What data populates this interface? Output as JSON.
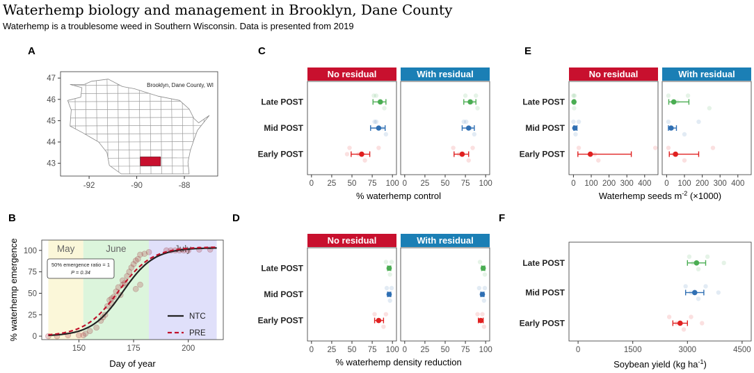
{
  "header": {
    "title": "Waterhemp biology and management in Brooklyn, Dane County",
    "subtitle": "Waterhemp is a troublesome weed in Southern Wisconsin. Data is presented from 2019"
  },
  "colors": {
    "no_residual": "#c8102e",
    "with_residual": "#1b7fb5",
    "late": "#4aad52",
    "mid": "#2f6fb3",
    "early": "#e02020",
    "may_band": "#fbf7d9",
    "june_band": "#dcf5dc",
    "july_band": "#e0e0fa",
    "ntc_line": "#222222",
    "pre_line": "#c0102a"
  },
  "chart_data": [
    {
      "panel": "A",
      "type": "map",
      "title": "Brooklyn, Dane County, WI",
      "x_ticks": [
        -92,
        -90,
        -88
      ],
      "y_ticks": [
        43,
        44,
        45,
        46,
        47
      ],
      "xlim": [
        -93.2,
        -86.6
      ],
      "ylim": [
        42.4,
        47.3
      ],
      "highlight_county": "Dane County"
    },
    {
      "panel": "B",
      "type": "line",
      "xlabel": "Day of year",
      "ylabel": "% waterhemp emergence",
      "xlim": [
        133,
        216
      ],
      "ylim": [
        -4,
        112
      ],
      "x_ticks": [
        150,
        175,
        200
      ],
      "y_ticks": [
        0,
        25,
        50,
        75,
        100
      ],
      "month_bands": [
        {
          "label": "May",
          "start": 136,
          "end": 152
        },
        {
          "label": "June",
          "start": 152,
          "end": 182
        },
        {
          "label": "July",
          "start": 182,
          "end": 213
        }
      ],
      "annotation_line1": "50% emergence ratio = 1",
      "annotation_line2": "P = 0.34",
      "legend": [
        {
          "label": "NTC",
          "style": "solid"
        },
        {
          "label": "PRE",
          "style": "dashed"
        }
      ],
      "series": [
        {
          "name": "NTC",
          "midpoint": 170,
          "slope": 0.14,
          "max": 103
        },
        {
          "name": "PRE",
          "midpoint": 168,
          "slope": 0.13,
          "max": 104
        }
      ],
      "points": [
        [
          136,
          0
        ],
        [
          140,
          0
        ],
        [
          145,
          1
        ],
        [
          150,
          1
        ],
        [
          152,
          1
        ],
        [
          153,
          3
        ],
        [
          155,
          6
        ],
        [
          158,
          10
        ],
        [
          160,
          18
        ],
        [
          161,
          22
        ],
        [
          162,
          25
        ],
        [
          163,
          35
        ],
        [
          164,
          42
        ],
        [
          165,
          44
        ],
        [
          165,
          38
        ],
        [
          166,
          46
        ],
        [
          167,
          52
        ],
        [
          168,
          57
        ],
        [
          169,
          48
        ],
        [
          170,
          60
        ],
        [
          170,
          65
        ],
        [
          171,
          62
        ],
        [
          172,
          70
        ],
        [
          173,
          75
        ],
        [
          174,
          80
        ],
        [
          175,
          84
        ],
        [
          176,
          88
        ],
        [
          176,
          55
        ],
        [
          177,
          90
        ],
        [
          178,
          95
        ],
        [
          178,
          60
        ],
        [
          180,
          96
        ],
        [
          182,
          98
        ],
        [
          190,
          100
        ],
        [
          192,
          100
        ],
        [
          194,
          100
        ],
        [
          196,
          100
        ],
        [
          198,
          100
        ],
        [
          200,
          100
        ],
        [
          205,
          101
        ],
        [
          210,
          101
        ]
      ]
    },
    {
      "panel": "C",
      "type": "dot-interval",
      "xlabel": "% waterhemp control",
      "categories": [
        "Late POST",
        "Mid POST",
        "Early POST"
      ],
      "facets": [
        "No residual",
        "With residual"
      ],
      "x_ticks": [
        0,
        25,
        50,
        75,
        100
      ],
      "xlim": [
        -5,
        105
      ],
      "series": [
        {
          "facet": "No residual",
          "timing": "Late POST",
          "mean": 85,
          "low": 76,
          "high": 92,
          "raw": [
            80,
            86,
            90,
            77
          ]
        },
        {
          "facet": "No residual",
          "timing": "Mid POST",
          "mean": 83,
          "low": 73,
          "high": 91,
          "raw": [
            78,
            88,
            92,
            80
          ]
        },
        {
          "facet": "No residual",
          "timing": "Early POST",
          "mean": 62,
          "low": 49,
          "high": 72,
          "raw": [
            47,
            58,
            66,
            83,
            44
          ]
        },
        {
          "facet": "With residual",
          "timing": "Late POST",
          "mean": 81,
          "low": 73,
          "high": 88,
          "raw": [
            75,
            84,
            90,
            88
          ]
        },
        {
          "facet": "With residual",
          "timing": "Mid POST",
          "mean": 79,
          "low": 71,
          "high": 86,
          "raw": [
            73,
            82,
            86,
            76
          ]
        },
        {
          "facet": "With residual",
          "timing": "Early POST",
          "mean": 71,
          "low": 61,
          "high": 79,
          "raw": [
            60,
            67,
            79,
            84
          ]
        }
      ]
    },
    {
      "panel": "D",
      "type": "dot-interval",
      "xlabel": "% waterhemp density reduction",
      "categories": [
        "Late POST",
        "Mid POST",
        "Early POST"
      ],
      "facets": [
        "No residual",
        "With residual"
      ],
      "x_ticks": [
        0,
        25,
        50,
        75,
        100
      ],
      "xlim": [
        -5,
        105
      ],
      "series": [
        {
          "facet": "No residual",
          "timing": "Late POST",
          "mean": 96,
          "low": 94,
          "high": 98,
          "raw": [
            92,
            95,
            97,
            99
          ]
        },
        {
          "facet": "No residual",
          "timing": "Mid POST",
          "mean": 96,
          "low": 94,
          "high": 98,
          "raw": [
            93,
            95,
            97,
            99
          ]
        },
        {
          "facet": "No residual",
          "timing": "Early POST",
          "mean": 83,
          "low": 78,
          "high": 89,
          "raw": [
            78,
            84,
            89,
            92
          ]
        },
        {
          "facet": "With residual",
          "timing": "Late POST",
          "mean": 97,
          "low": 95,
          "high": 99,
          "raw": [
            93,
            96,
            99
          ]
        },
        {
          "facet": "With residual",
          "timing": "Mid POST",
          "mean": 96,
          "low": 94,
          "high": 98,
          "raw": [
            92,
            95,
            98,
            99
          ]
        },
        {
          "facet": "With residual",
          "timing": "Early POST",
          "mean": 94,
          "low": 91,
          "high": 97,
          "raw": [
            90,
            95,
            98,
            96
          ]
        }
      ]
    },
    {
      "panel": "E",
      "type": "dot-interval",
      "xlabel": "Waterhemp seeds m",
      "xlabel_sup": "-2",
      "xlabel_tail": " (×1000)",
      "categories": [
        "Late POST",
        "Mid POST",
        "Early POST"
      ],
      "facets": [
        "No residual",
        "With residual"
      ],
      "x_ticks": [
        0,
        100,
        200,
        300,
        400
      ],
      "xlim": [
        -25,
        475
      ],
      "series": [
        {
          "facet": "No residual",
          "timing": "Late POST",
          "mean": 3,
          "low": 0,
          "high": 8,
          "raw": [
            0,
            2,
            4,
            6
          ]
        },
        {
          "facet": "No residual",
          "timing": "Mid POST",
          "mean": 8,
          "low": 2,
          "high": 20,
          "raw": [
            0,
            4,
            12,
            30
          ]
        },
        {
          "facet": "No residual",
          "timing": "Early POST",
          "mean": 95,
          "low": 25,
          "high": 325,
          "raw": [
            30,
            120,
            140,
            460
          ]
        },
        {
          "facet": "With residual",
          "timing": "Late POST",
          "mean": 40,
          "low": 12,
          "high": 125,
          "raw": [
            10,
            60,
            240,
            120
          ]
        },
        {
          "facet": "With residual",
          "timing": "Mid POST",
          "mean": 25,
          "low": 10,
          "high": 55,
          "raw": [
            10,
            30,
            100,
            180
          ]
        },
        {
          "facet": "With residual",
          "timing": "Early POST",
          "mean": 50,
          "low": 15,
          "high": 180,
          "raw": [
            10,
            40,
            100,
            260
          ]
        }
      ]
    },
    {
      "panel": "F",
      "type": "dot-interval",
      "xlabel": "Soybean yield (kg ha",
      "xlabel_sup": "-1",
      "xlabel_tail": ")",
      "categories": [
        "Late POST",
        "Mid POST",
        "Early POST"
      ],
      "x_ticks": [
        0,
        1500,
        3000,
        4500
      ],
      "xlim": [
        -250,
        4750
      ],
      "series": [
        {
          "timing": "Late POST",
          "mean": 3250,
          "low": 3000,
          "high": 3500,
          "raw": [
            3050,
            3150,
            3300,
            3550,
            4000
          ]
        },
        {
          "timing": "Mid POST",
          "mean": 3200,
          "low": 2950,
          "high": 3450,
          "raw": [
            2950,
            3100,
            3300,
            3500,
            3850
          ]
        },
        {
          "timing": "Early POST",
          "mean": 2800,
          "low": 2600,
          "high": 3000,
          "raw": [
            2500,
            2700,
            2900,
            3100,
            3400
          ]
        }
      ]
    }
  ],
  "panel_labels": [
    "A",
    "B",
    "C",
    "D",
    "E",
    "F"
  ]
}
